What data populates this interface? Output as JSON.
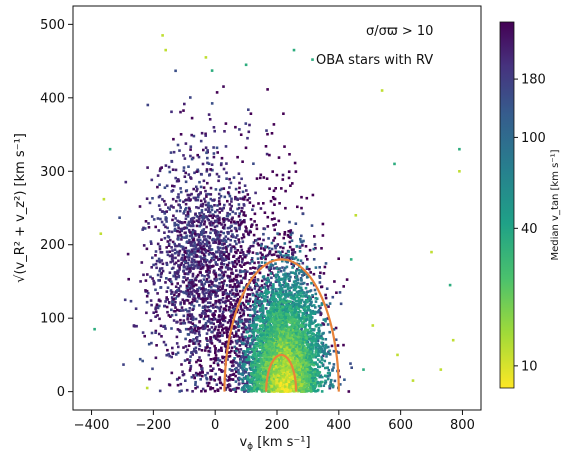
{
  "chart_data": {
    "type": "scatter",
    "xlim": [
      -460,
      860
    ],
    "ylim": [
      -25,
      525
    ],
    "x_ticks": [
      -400,
      -200,
      0,
      200,
      400,
      600,
      800
    ],
    "y_ticks": [
      0,
      100,
      200,
      300,
      400,
      500
    ],
    "x_tick_labels": [
      "−400",
      "−200",
      "0",
      "200",
      "400",
      "600",
      "800"
    ],
    "y_tick_labels": [
      "0",
      "100",
      "200",
      "300",
      "400",
      "500"
    ],
    "xlabel_main": "v",
    "xlabel_sub": "ϕ",
    "xlabel_unit": " [km s⁻¹]",
    "ylabel": "√(v_R² + v_z²) [km s⁻¹]",
    "annotations": [
      "σ/σϖ > 10",
      "OBA stars with RV"
    ],
    "colorbar": {
      "label": "Median v_tan [km s⁻¹]",
      "scale": "log",
      "range": [
        8,
        320
      ],
      "ticks": [
        10,
        40,
        100,
        180
      ],
      "tick_labels": [
        "10",
        "40",
        "100",
        "180"
      ],
      "colormap": "viridis (reversed: yellow = low, purple = high)"
    },
    "contours": [
      {
        "shape": "outer ellipse",
        "center": [
          220,
          0
        ],
        "x_range": [
          30,
          400
        ],
        "top_y": 180,
        "color": "#e8833a"
      },
      {
        "shape": "inner ellipse",
        "center": [
          215,
          0
        ],
        "x_range": [
          165,
          262
        ],
        "top_y": 50,
        "color": "#e8833a"
      }
    ],
    "point_clouds": [
      {
        "name": "halo-like region",
        "x_range": [
          -230,
          150
        ],
        "y_range": [
          50,
          400
        ],
        "median_vtan": "high (purple)"
      },
      {
        "name": "disk-like core",
        "x_range": [
          100,
          380
        ],
        "y_range": [
          0,
          200
        ],
        "median_vtan": "low (yellow-green)"
      }
    ],
    "outliers": [
      {
        "x": -170,
        "y": 485
      },
      {
        "x": -160,
        "y": 465
      },
      {
        "x": -30,
        "y": 455
      },
      {
        "x": -10,
        "y": 437
      },
      {
        "x": 100,
        "y": 445
      },
      {
        "x": 255,
        "y": 465
      },
      {
        "x": 315,
        "y": 452
      },
      {
        "x": 540,
        "y": 410
      },
      {
        "x": -390,
        "y": 85
      },
      {
        "x": -370,
        "y": 215
      },
      {
        "x": -360,
        "y": 262
      },
      {
        "x": -340,
        "y": 330
      },
      {
        "x": -220,
        "y": 5
      },
      {
        "x": 580,
        "y": 310
      },
      {
        "x": 640,
        "y": 15
      },
      {
        "x": 700,
        "y": 190
      },
      {
        "x": 730,
        "y": 30
      },
      {
        "x": 760,
        "y": 145
      },
      {
        "x": 790,
        "y": 330
      },
      {
        "x": 790,
        "y": 300
      },
      {
        "x": 770,
        "y": 70
      },
      {
        "x": 440,
        "y": 180
      },
      {
        "x": 480,
        "y": 30
      },
      {
        "x": 510,
        "y": 90
      },
      {
        "x": 455,
        "y": 240
      },
      {
        "x": 590,
        "y": 50
      }
    ]
  }
}
